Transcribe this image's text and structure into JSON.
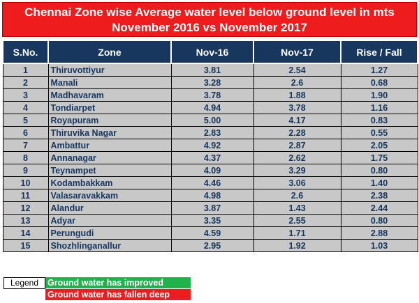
{
  "title": {
    "line1": "Chennai Zone wise Average water level below ground level in mts",
    "line2": "November 2016 vs November 2017"
  },
  "chart_data": {
    "type": "table",
    "title": "Chennai Zone wise Average water level below ground level in mts November 2016 vs November 2017",
    "columns": [
      "S.No.",
      "Zone",
      "Nov-16",
      "Nov-17",
      "Rise / Fall"
    ],
    "rows": [
      [
        "1",
        "Thiruvottiyur",
        "3.81",
        "2.54",
        "1.27"
      ],
      [
        "2",
        "Manali",
        "3.28",
        "2.6",
        "0.68"
      ],
      [
        "3",
        "Madhavaram",
        "3.78",
        "1.88",
        "1.90"
      ],
      [
        "4",
        "Tondiarpet",
        "4.94",
        "3.78",
        "1.16"
      ],
      [
        "5",
        "Royapuram",
        "5.00",
        "4.17",
        "0.83"
      ],
      [
        "6",
        "Thiruvika Nagar",
        "2.83",
        "2.28",
        "0.55"
      ],
      [
        "7",
        "Ambattur",
        "4.92",
        "2.87",
        "2.05"
      ],
      [
        "8",
        "Annanagar",
        "4.37",
        "2.62",
        "1.75"
      ],
      [
        "9",
        "Teynampet",
        "4.09",
        "3.29",
        "0.80"
      ],
      [
        "10",
        "Kodambakkam",
        "4.46",
        "3.06",
        "1.40"
      ],
      [
        "11",
        "Valasaravakkam",
        "4.98",
        "2.6",
        "2.38"
      ],
      [
        "12",
        "Alandur",
        "3.87",
        "1.43",
        "2.44"
      ],
      [
        "13",
        "Adyar",
        "3.35",
        "2.55",
        "0.80"
      ],
      [
        "14",
        "Perungudi",
        "4.59",
        "1.71",
        "2.88"
      ],
      [
        "15",
        "Shozhlinganallur",
        "2.95",
        "1.92",
        "1.03"
      ]
    ]
  },
  "legend": {
    "label": "Legend",
    "improved": "Ground water has improved",
    "fallen": "Ground water has fallen deep"
  },
  "colors": {
    "title_bg": "#ee1c1c",
    "header_bg": "#17375e",
    "row_bg": "#c8c8c8",
    "improved": "#22b14c",
    "fallen": "#ee1c1c",
    "text_dark": "#17375e"
  }
}
